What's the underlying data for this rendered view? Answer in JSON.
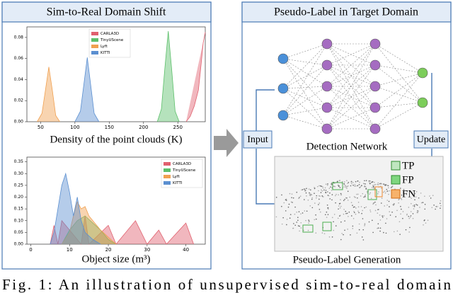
{
  "left_panel": {
    "title": "Sim-to-Real Domain Shift"
  },
  "chart_data": [
    {
      "type": "area",
      "x_label": "Density of the point clouds (K)",
      "xlim": [
        30,
        290
      ],
      "xticks": [
        50,
        100,
        150,
        200,
        250
      ],
      "ylim": [
        0,
        0.09
      ],
      "yticks": [
        {
          "value": 0,
          "label": "0.00"
        },
        {
          "value": 0.02,
          "label": "0.02"
        },
        {
          "value": 0.04,
          "label": "0.04"
        },
        {
          "value": 0.06,
          "label": "0.06"
        },
        {
          "value": 0.08,
          "label": "0.08"
        }
      ],
      "legend": "top-center",
      "series": [
        {
          "name": "CARLA3D",
          "color": "#e0606e",
          "x": [
            262,
            268,
            274,
            280,
            284,
            287,
            290
          ],
          "values": [
            0,
            0.005,
            0.015,
            0.03,
            0.055,
            0.075,
            0.085
          ]
        },
        {
          "name": "TinyUScene",
          "color": "#5cbf6a",
          "x": [
            220,
            226,
            231,
            236,
            241,
            246,
            252
          ],
          "values": [
            0,
            0.012,
            0.05,
            0.086,
            0.05,
            0.01,
            0
          ]
        },
        {
          "name": "Lyft",
          "color": "#f0a050",
          "x": [
            45,
            52,
            57,
            62,
            67,
            72,
            78
          ],
          "values": [
            0,
            0.008,
            0.03,
            0.052,
            0.03,
            0.006,
            0
          ]
        },
        {
          "name": "KITTI",
          "color": "#5b8fd0",
          "x": [
            100,
            108,
            113,
            118,
            123,
            128,
            135
          ],
          "values": [
            0,
            0.01,
            0.035,
            0.061,
            0.035,
            0.008,
            0
          ]
        }
      ]
    },
    {
      "type": "area",
      "x_label": "Object size (m³)",
      "xlim": [
        -1,
        45
      ],
      "xticks": [
        0,
        10,
        20,
        30,
        40
      ],
      "ylim": [
        0,
        0.37
      ],
      "yticks": [
        {
          "value": 0,
          "label": "0.00"
        },
        {
          "value": 0.05,
          "label": "0.05"
        },
        {
          "value": 0.1,
          "label": "0.10"
        },
        {
          "value": 0.15,
          "label": "0.15"
        },
        {
          "value": 0.2,
          "label": "0.20"
        },
        {
          "value": 0.25,
          "label": "0.25"
        },
        {
          "value": 0.3,
          "label": "0.30"
        },
        {
          "value": 0.35,
          "label": "0.35"
        }
      ],
      "legend": "top-right",
      "series": [
        {
          "name": "CARLA3D",
          "color": "#e0606e",
          "x": [
            5,
            6,
            7,
            8,
            13,
            14,
            15,
            20,
            22,
            27,
            30,
            33,
            35,
            40,
            42
          ],
          "values": [
            0,
            0.08,
            0,
            0.1,
            0,
            0.12,
            0,
            0.08,
            0,
            0.1,
            0,
            0.06,
            0,
            0.09,
            0
          ]
        },
        {
          "name": "TinyUScene",
          "color": "#5cbf6a",
          "x": [
            8,
            10,
            12,
            14,
            16,
            18,
            20,
            22
          ],
          "values": [
            0,
            0.06,
            0.1,
            0.12,
            0.09,
            0.06,
            0.02,
            0
          ]
        },
        {
          "name": "Lyft",
          "color": "#f0a050",
          "x": [
            8,
            10,
            11,
            12,
            13,
            14,
            15,
            16,
            18,
            20,
            22
          ],
          "values": [
            0,
            0.05,
            0.12,
            0.18,
            0.15,
            0.16,
            0.12,
            0.1,
            0.06,
            0.03,
            0
          ]
        },
        {
          "name": "KITTI",
          "color": "#5b8fd0",
          "x": [
            5,
            6,
            7,
            8,
            9,
            10,
            11,
            12,
            13,
            14,
            16,
            18
          ],
          "values": [
            0,
            0.05,
            0.15,
            0.25,
            0.3,
            0.22,
            0.12,
            0.2,
            0.1,
            0.05,
            0.02,
            0
          ]
        }
      ]
    }
  ],
  "right_panel": {
    "title": "Pseudo-Label in Target Domain",
    "input_label": "Input",
    "update_label": "Update",
    "network_label": "Detection Network",
    "generation_label": "Pseudo-Label Generation",
    "legend": [
      "TP",
      "FP",
      "FN"
    ]
  },
  "caption": "Fig. 1: An illustration of unsupervised sim-to-real domain"
}
